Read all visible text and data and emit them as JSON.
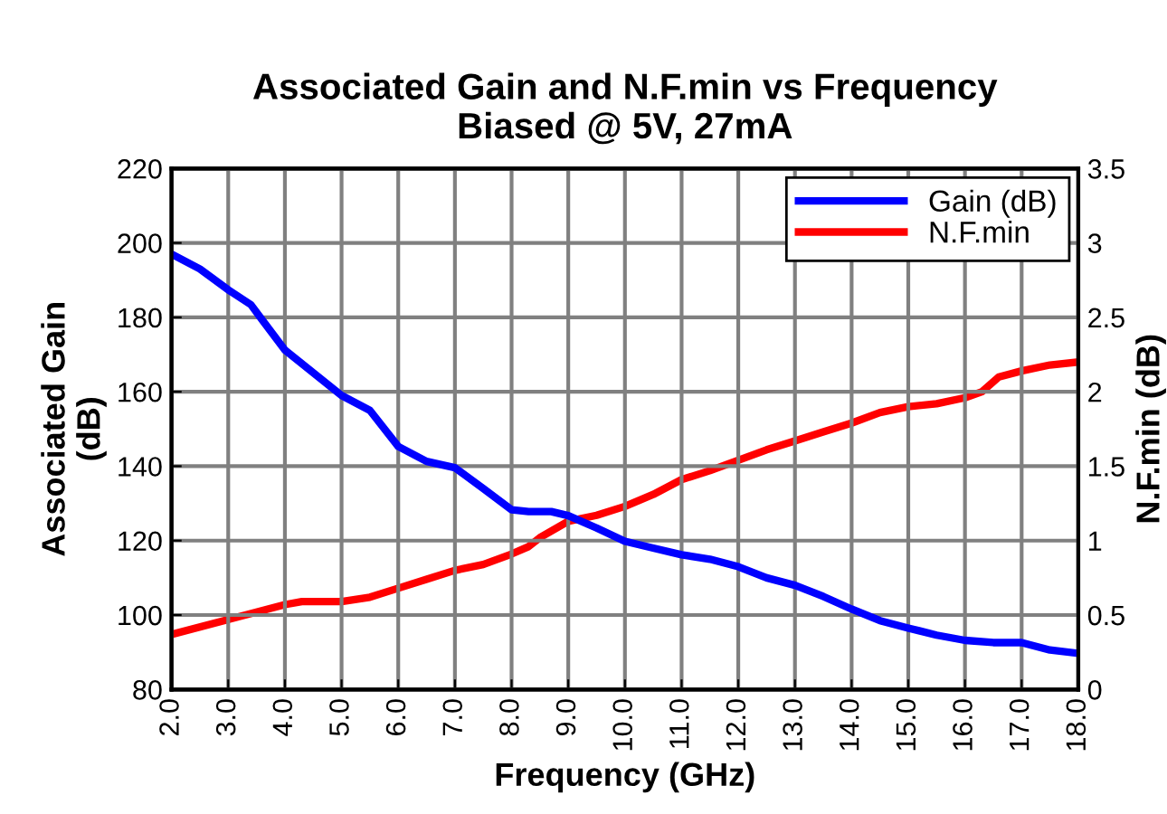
{
  "chart_data": {
    "type": "line",
    "title": "Associated Gain and N.F.min vs Frequency\nBiased @ 5V, 27mA",
    "xlabel": "Frequency (GHz)",
    "ylabel": "Associated Gain\n(dB)",
    "y2label": "N.F.min (dB)",
    "xlim": [
      2,
      18
    ],
    "xticks": [
      {
        "value": 2,
        "label": "2.0"
      },
      {
        "value": 3,
        "label": "3.0"
      },
      {
        "value": 4,
        "label": "4.0"
      },
      {
        "value": 5,
        "label": "5.0"
      },
      {
        "value": 6,
        "label": "6.0"
      },
      {
        "value": 7,
        "label": "7.0"
      },
      {
        "value": 8,
        "label": "8.0"
      },
      {
        "value": 9,
        "label": "9.0"
      },
      {
        "value": 10,
        "label": "10.0"
      },
      {
        "value": 11,
        "label": "11.0"
      },
      {
        "value": 12,
        "label": "12.0"
      },
      {
        "value": 13,
        "label": "13.0"
      },
      {
        "value": 14,
        "label": "14.0"
      },
      {
        "value": 15,
        "label": "15.0"
      },
      {
        "value": 16,
        "label": "16.0"
      },
      {
        "value": 17,
        "label": "17.0"
      },
      {
        "value": 18,
        "label": "18.0"
      }
    ],
    "ylim": [
      80,
      220
    ],
    "yticks": [
      80,
      100,
      120,
      140,
      160,
      180,
      200,
      220
    ],
    "y2lim": [
      0,
      3.5
    ],
    "y2ticks": [
      0,
      0.5,
      1,
      1.5,
      2,
      2.5,
      3,
      3.5
    ],
    "grid": true,
    "legend": "top right",
    "marker": "none",
    "line_style": "solid",
    "series": [
      {
        "name": "Gain (dB)",
        "color": "#0000ff",
        "x": [
          2,
          2.5,
          3,
          3.4,
          3.6,
          4,
          5,
          5.5,
          6,
          6.5,
          7,
          7.5,
          8,
          8.3,
          8.7,
          9,
          9.5,
          10,
          10.5,
          11,
          11.5,
          12,
          12.5,
          13,
          13.5,
          14,
          14.5,
          15,
          15.5,
          16,
          16.5,
          17,
          17.5,
          18
        ],
        "values": [
          197,
          193,
          187.4,
          183.4,
          179.3,
          171.2,
          159,
          155,
          145.3,
          141.3,
          139.6,
          134,
          128.3,
          127.8,
          127.8,
          126.7,
          123.4,
          119.8,
          118,
          116.2,
          115,
          113,
          110,
          108,
          105,
          101.6,
          98.5,
          96.5,
          94.6,
          93.2,
          92.6,
          92.6,
          90.6,
          89.7
        ]
      },
      {
        "name": "N.F.min",
        "color": "#ff0000",
        "axis": "y2",
        "x": [
          2,
          3,
          4,
          4.3,
          5,
          5.5,
          6,
          6.5,
          7,
          7.5,
          8,
          8.3,
          8.5,
          9,
          9.5,
          10,
          10.5,
          11,
          11.5,
          12,
          12.5,
          13,
          13.5,
          14,
          14.5,
          15,
          15.5,
          16,
          16.3,
          16.6,
          17,
          17.5,
          18
        ],
        "values": [
          0.37,
          0.47,
          0.57,
          0.59,
          0.59,
          0.62,
          0.68,
          0.74,
          0.8,
          0.84,
          0.91,
          0.96,
          1.02,
          1.13,
          1.17,
          1.23,
          1.31,
          1.41,
          1.47,
          1.54,
          1.61,
          1.67,
          1.73,
          1.79,
          1.86,
          1.9,
          1.92,
          1.96,
          2.0,
          2.1,
          2.14,
          2.18,
          2.2
        ]
      }
    ]
  }
}
